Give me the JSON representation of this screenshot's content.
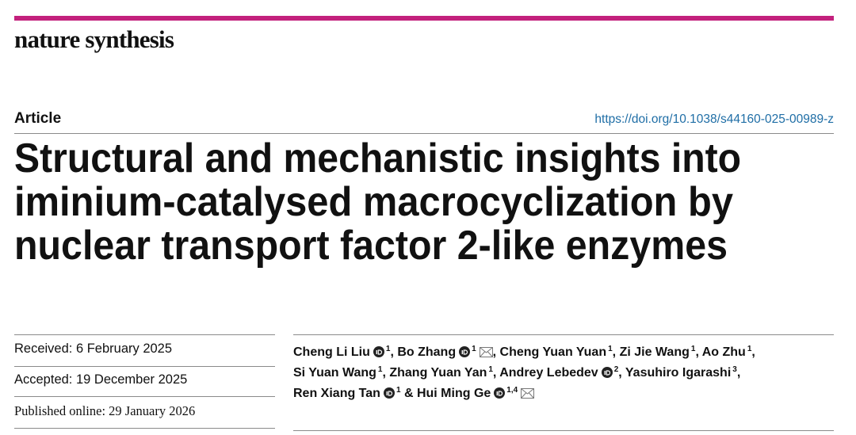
{
  "header": {
    "journal": "nature synthesis",
    "article_type": "Article",
    "doi": "https://doi.org/10.1038/s44160-025-00989-z"
  },
  "title": {
    "lines": [
      "Structural and mechanistic insights into",
      "iminium-catalysed macrocyclization by",
      "nuclear transport factor 2-like enzymes"
    ]
  },
  "dates": {
    "received": "Received: 6 February 2025",
    "accepted": "Accepted: 19 December 2025",
    "published": "Published online: 29 January 2026"
  },
  "authors": [
    [
      {
        "name": "Cheng Li Liu",
        "orcid": true,
        "affiliations": "1",
        "separator": ", "
      },
      {
        "name": "Bo Zhang",
        "orcid": true,
        "affiliations": "1",
        "corresponding": true,
        "separator": ", "
      },
      {
        "name": "Cheng Yuan Yuan",
        "affiliations": "1",
        "separator": ", "
      },
      {
        "name": "Zi Jie Wang",
        "affiliations": "1",
        "separator": ", "
      },
      {
        "name": "Ao Zhu",
        "affiliations": "1",
        "separator": ","
      }
    ],
    [
      {
        "name": "Si Yuan Wang",
        "affiliations": "1",
        "separator": ", "
      },
      {
        "name": "Zhang Yuan Yan",
        "affiliations": "1",
        "separator": ", "
      },
      {
        "name": "Andrey Lebedev",
        "orcid": true,
        "affiliations": "2",
        "separator": ", "
      },
      {
        "name": "Yasuhiro Igarashi",
        "affiliations": "3",
        "separator": ","
      }
    ],
    [
      {
        "name": "Ren Xiang Tan",
        "orcid": true,
        "affiliations": "1",
        "separator": " & "
      },
      {
        "name": "Hui Ming Ge",
        "orcid": true,
        "affiliations": "1,4",
        "corresponding": true
      }
    ]
  ]
}
